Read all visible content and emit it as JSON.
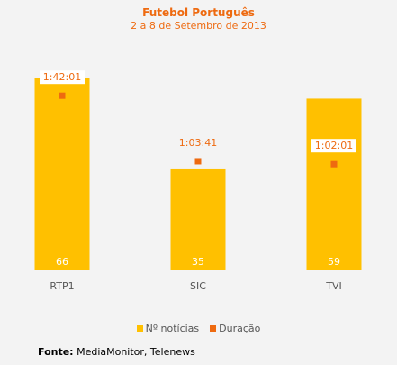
{
  "chart_data": {
    "type": "bar",
    "title": "Futebol Português",
    "subtitle": "2 a 8 de Setembro de  2013",
    "categories": [
      "RTP1",
      "SIC",
      "TVI"
    ],
    "series": [
      {
        "name": "Nº notícias",
        "type": "bar",
        "values": [
          66,
          35,
          59
        ],
        "labels": [
          "66",
          "35",
          "59"
        ]
      },
      {
        "name": "Duração",
        "type": "scatter",
        "values_minutes": [
          102.0,
          63.7,
          62.0
        ],
        "labels": [
          "1:42:01",
          "1:03:41",
          "1:02:01"
        ]
      }
    ],
    "legend_position": "bottom",
    "grid": false
  },
  "colors": {
    "bar": "#ffc000",
    "duration": "#ee6a10",
    "background": "#f3f3f3",
    "title": "#ee6a10"
  },
  "source": {
    "label": "Fonte:",
    "text": "MediaMonitor, Telenews"
  }
}
